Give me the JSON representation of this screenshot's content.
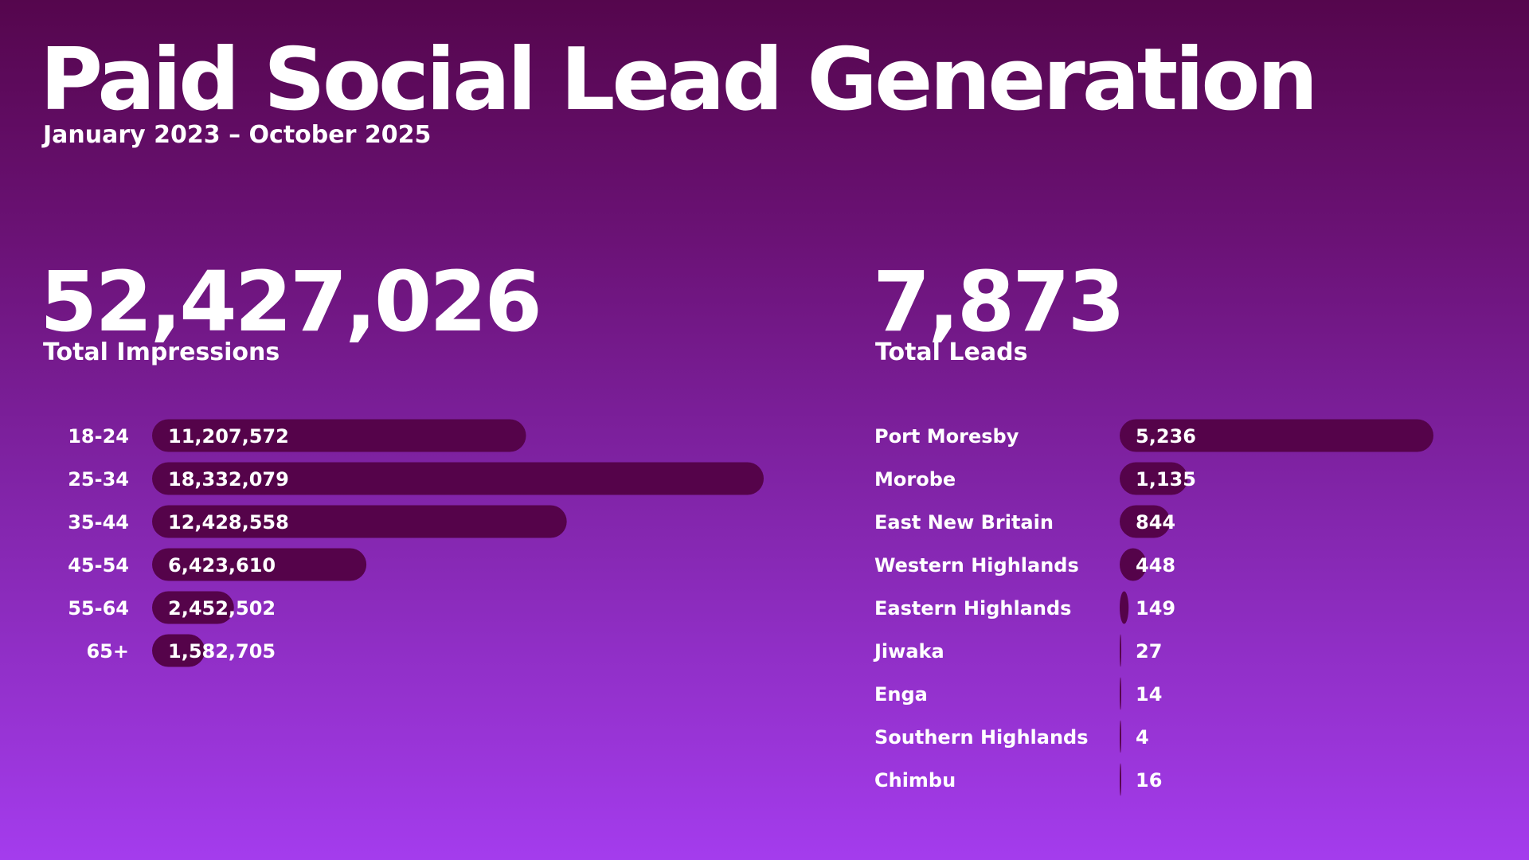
{
  "header": {
    "title": "Paid Social Lead Generation",
    "subtitle": "January 2023 – October 2025"
  },
  "kpis": {
    "impressions": {
      "value": "52,427,026",
      "label": "Total Impressions"
    },
    "leads": {
      "value": "7,873",
      "label": "Total Leads"
    }
  },
  "colors": {
    "bar": "#55034a",
    "background_top": "#55064d",
    "background_bottom": "#a43ced",
    "text": "#ffffff"
  },
  "chart_data": [
    {
      "type": "bar",
      "orientation": "horizontal",
      "categories": [
        "18-24",
        "25-34",
        "35-44",
        "45-54",
        "55-64",
        "65+"
      ],
      "values": [
        11207572,
        18332079,
        12428558,
        6423610,
        2452502,
        1582705
      ],
      "value_labels": [
        "11,207,572",
        "18,332,079",
        "12,428,558",
        "6,423,610",
        "2,452,502",
        "1,582,705"
      ],
      "grid": false,
      "legend": "none"
    },
    {
      "type": "bar",
      "orientation": "horizontal",
      "categories": [
        "Port Moresby",
        "Morobe",
        "East New Britain",
        "Western Highlands",
        "Eastern Highlands",
        "Jiwaka",
        "Enga",
        "Southern Highlands",
        "Chimbu"
      ],
      "values": [
        5236,
        1135,
        844,
        448,
        149,
        27,
        14,
        4,
        16
      ],
      "value_labels": [
        "5,236",
        "1,135",
        "844",
        "448",
        "149",
        "27",
        "14",
        "4",
        "16"
      ],
      "grid": false,
      "legend": "none"
    }
  ]
}
